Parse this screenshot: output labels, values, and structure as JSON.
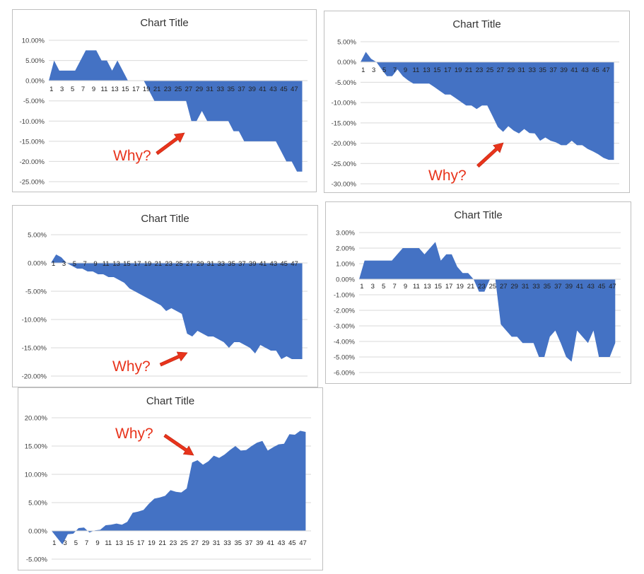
{
  "arrow_color": "#e8341c",
  "series_color": "#4472c4",
  "chart_data": [
    {
      "type": "area",
      "title": "Chart Title",
      "ylim": [
        -25,
        10
      ],
      "yticks": [
        "10.00%",
        "5.00%",
        "0.00%",
        "-5.00%",
        "-10.00%",
        "-15.00%",
        "-20.00%",
        "-25.00%"
      ],
      "xtick_labels": [
        "1",
        "3",
        "5",
        "7",
        "9",
        "11",
        "13",
        "15",
        "17",
        "19",
        "21",
        "23",
        "25",
        "27",
        "29",
        "31",
        "33",
        "35",
        "37",
        "39",
        "41",
        "43",
        "45",
        "47"
      ],
      "values": [
        0,
        5,
        2.5,
        2.5,
        2.5,
        2.5,
        5,
        7.5,
        7.5,
        7.5,
        5,
        5,
        2.5,
        5,
        2.5,
        0,
        0,
        0,
        0,
        -2.5,
        -5,
        -5,
        -5,
        -5,
        -5,
        -5,
        -5,
        -10,
        -10,
        -7.5,
        -10,
        -10,
        -10,
        -10,
        -10,
        -12.5,
        -12.5,
        -15,
        -15,
        -15,
        -15,
        -15,
        -15,
        -15,
        -17.5,
        -20,
        -20,
        -22.5,
        -22.5
      ],
      "grid": true,
      "annotation": "Why?"
    },
    {
      "type": "area",
      "title": "Chart Title",
      "ylim": [
        -30,
        5
      ],
      "yticks": [
        "5.00%",
        "0.00%",
        "-5.00%",
        "-10.00%",
        "-15.00%",
        "-20.00%",
        "-25.00%",
        "-30.00%"
      ],
      "xtick_labels": [
        "1",
        "3",
        "5",
        "7",
        "9",
        "11",
        "13",
        "15",
        "17",
        "19",
        "21",
        "23",
        "25",
        "27",
        "29",
        "31",
        "33",
        "35",
        "37",
        "39",
        "41",
        "43",
        "45",
        "47"
      ],
      "values": [
        0,
        2.5,
        0.8,
        0,
        -1.8,
        -3.5,
        -3.5,
        -1.8,
        -3.5,
        -4.5,
        -5.3,
        -5.3,
        -5.3,
        -5.3,
        -6.2,
        -7.1,
        -8,
        -8,
        -8.9,
        -9.8,
        -10.7,
        -10.7,
        -11.6,
        -10.7,
        -10.7,
        -13.3,
        -16,
        -17.2,
        -15.8,
        -16.9,
        -17.6,
        -16.5,
        -17.5,
        -17.6,
        -19.4,
        -18.6,
        -19.4,
        -19.8,
        -20.5,
        -20.5,
        -19.4,
        -20.5,
        -20.5,
        -21.4,
        -22,
        -22.7,
        -23.6,
        -24.1,
        -24.1
      ],
      "grid": true,
      "annotation": "Why?"
    },
    {
      "type": "area",
      "title": "Chart Title",
      "ylim": [
        -20,
        5
      ],
      "yticks": [
        "5.00%",
        "0.00%",
        "-5.00%",
        "-10.00%",
        "-15.00%",
        "-20.00%"
      ],
      "xtick_labels": [
        "1",
        "3",
        "5",
        "7",
        "9",
        "11",
        "13",
        "15",
        "17",
        "19",
        "21",
        "23",
        "25",
        "27",
        "29",
        "31",
        "33",
        "35",
        "37",
        "39",
        "41",
        "43",
        "45",
        "47"
      ],
      "values": [
        0,
        1.5,
        1,
        0,
        -0.5,
        -1,
        -1,
        -1.5,
        -1.5,
        -2,
        -2,
        -2.5,
        -2.5,
        -3,
        -3.5,
        -4.5,
        -5,
        -5.5,
        -6,
        -6.5,
        -7,
        -7.5,
        -8.5,
        -8,
        -8.5,
        -9,
        -12.5,
        -13,
        -12,
        -12.5,
        -13,
        -13,
        -13.5,
        -14,
        -15,
        -14,
        -14,
        -14.5,
        -15,
        -16,
        -14.5,
        -15,
        -15.5,
        -15.5,
        -17,
        -16.5,
        -17,
        -17,
        -17
      ],
      "grid": true,
      "annotation": "Why?"
    },
    {
      "type": "area",
      "title": "Chart Title",
      "ylim": [
        -6,
        3
      ],
      "yticks": [
        "3.00%",
        "2.00%",
        "1.00%",
        "0.00%",
        "-1.00%",
        "-2.00%",
        "-3.00%",
        "-4.00%",
        "-5.00%",
        "-6.00%"
      ],
      "xtick_labels": [
        "1",
        "3",
        "5",
        "7",
        "9",
        "11",
        "13",
        "15",
        "17",
        "19",
        "21",
        "23",
        "25",
        "27",
        "29",
        "31",
        "33",
        "35",
        "37",
        "39",
        "41",
        "43",
        "45",
        "47"
      ],
      "values": [
        0,
        1.2,
        1.2,
        1.2,
        1.2,
        1.2,
        1.2,
        1.6,
        2,
        2,
        2,
        2,
        1.6,
        2,
        2.4,
        1.2,
        1.6,
        1.6,
        0.8,
        0.4,
        0.4,
        0,
        -0.8,
        -0.8,
        0,
        0,
        -2.9,
        -3.3,
        -3.7,
        -3.7,
        -4.1,
        -4.1,
        -4.1,
        -5,
        -5,
        -3.7,
        -3.3,
        -4.1,
        -5,
        -5.3,
        -3.3,
        -3.7,
        -4.1,
        -3.3,
        -5,
        -5,
        -5,
        -4.1
      ],
      "grid": true,
      "annotation": ""
    },
    {
      "type": "area",
      "title": "Chart Title",
      "ylim": [
        -5,
        20
      ],
      "yticks": [
        "20.00%",
        "15.00%",
        "10.00%",
        "5.00%",
        "0.00%",
        "-5.00%"
      ],
      "xtick_labels": [
        "1",
        "3",
        "5",
        "7",
        "9",
        "11",
        "13",
        "15",
        "17",
        "19",
        "21",
        "23",
        "25",
        "27",
        "29",
        "31",
        "33",
        "35",
        "37",
        "39",
        "41",
        "43",
        "45",
        "47"
      ],
      "values": [
        0,
        -1.2,
        -2.4,
        -0.6,
        -0.5,
        0.5,
        0.6,
        -0.3,
        0.1,
        0.2,
        1,
        1.1,
        1.3,
        1.1,
        1.6,
        3.2,
        3.4,
        3.7,
        4.8,
        5.7,
        5.9,
        6.2,
        7.2,
        6.9,
        6.8,
        7.5,
        12.1,
        12.5,
        11.7,
        12.3,
        13.3,
        12.9,
        13.5,
        14.3,
        15,
        14.2,
        14.3,
        15,
        15.6,
        15.9,
        14.2,
        14.8,
        15.3,
        15.4,
        17.1,
        17,
        17.7,
        17.5
      ],
      "grid": true,
      "annotation": "Why?"
    }
  ]
}
